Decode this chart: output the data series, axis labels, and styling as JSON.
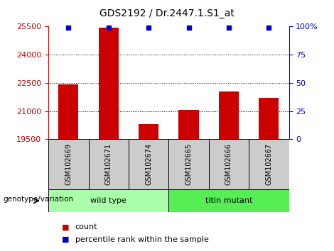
{
  "title": "GDS2192 / Dr.2447.1.S1_at",
  "samples": [
    "GSM102669",
    "GSM102671",
    "GSM102674",
    "GSM102665",
    "GSM102666",
    "GSM102667"
  ],
  "counts": [
    22420,
    25420,
    20290,
    21050,
    22050,
    21700
  ],
  "percentiles": [
    99,
    99,
    99,
    99,
    99,
    99
  ],
  "ylim": [
    19500,
    25500
  ],
  "yticks": [
    19500,
    21000,
    22500,
    24000,
    25500
  ],
  "y2ticks": [
    0,
    25,
    50,
    75,
    100
  ],
  "bar_color": "#cc0000",
  "percentile_color": "#0000cc",
  "groups": [
    {
      "label": "wild type",
      "start": 0,
      "end": 3,
      "color": "#aaffaa"
    },
    {
      "label": "titin mutant",
      "start": 3,
      "end": 6,
      "color": "#55ee55"
    }
  ],
  "group_label": "genotype/variation",
  "legend_count": "count",
  "legend_pct": "percentile rank within the sample",
  "background_color": "#ffffff",
  "sample_box_color": "#cccccc",
  "grid_vals": [
    21000,
    22500,
    24000
  ]
}
